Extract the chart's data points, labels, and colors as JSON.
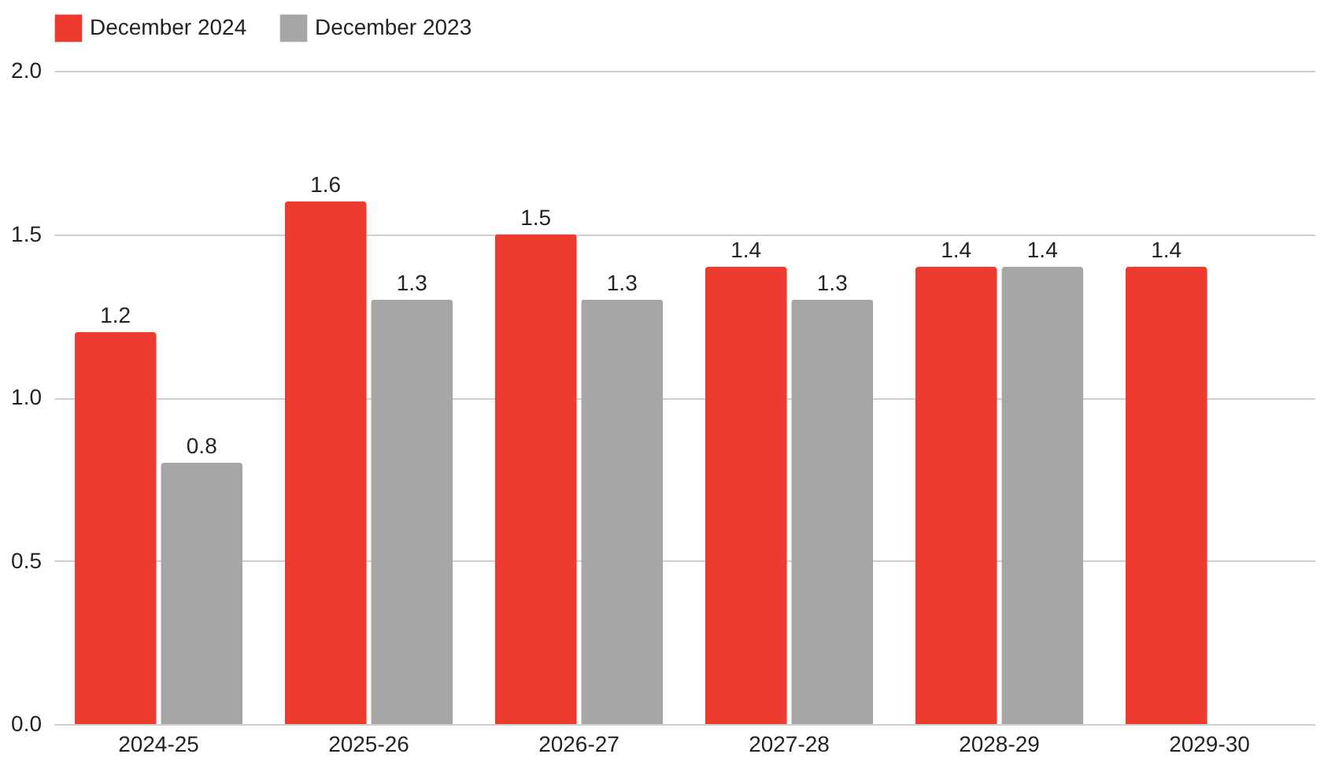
{
  "chart_data": {
    "type": "bar",
    "categories": [
      "2024-25",
      "2025-26",
      "2026-27",
      "2027-28",
      "2028-29",
      "2029-30"
    ],
    "series": [
      {
        "name": "December 2024",
        "color": "#ee3b2f",
        "values": [
          1.2,
          1.6,
          1.5,
          1.4,
          1.4,
          1.4
        ]
      },
      {
        "name": "December 2023",
        "color": "#a6a6a6",
        "values": [
          0.8,
          1.3,
          1.3,
          1.3,
          1.4,
          null
        ]
      }
    ],
    "ylim": [
      0,
      2
    ],
    "yticks": [
      {
        "value": 0,
        "label": "0.0"
      },
      {
        "value": 0.5,
        "label": "0.5"
      },
      {
        "value": 1,
        "label": "1.0"
      },
      {
        "value": 1.5,
        "label": "1.5"
      },
      {
        "value": 2,
        "label": "2.0"
      }
    ],
    "grid": "y",
    "legend": "top",
    "data_labels": true
  }
}
